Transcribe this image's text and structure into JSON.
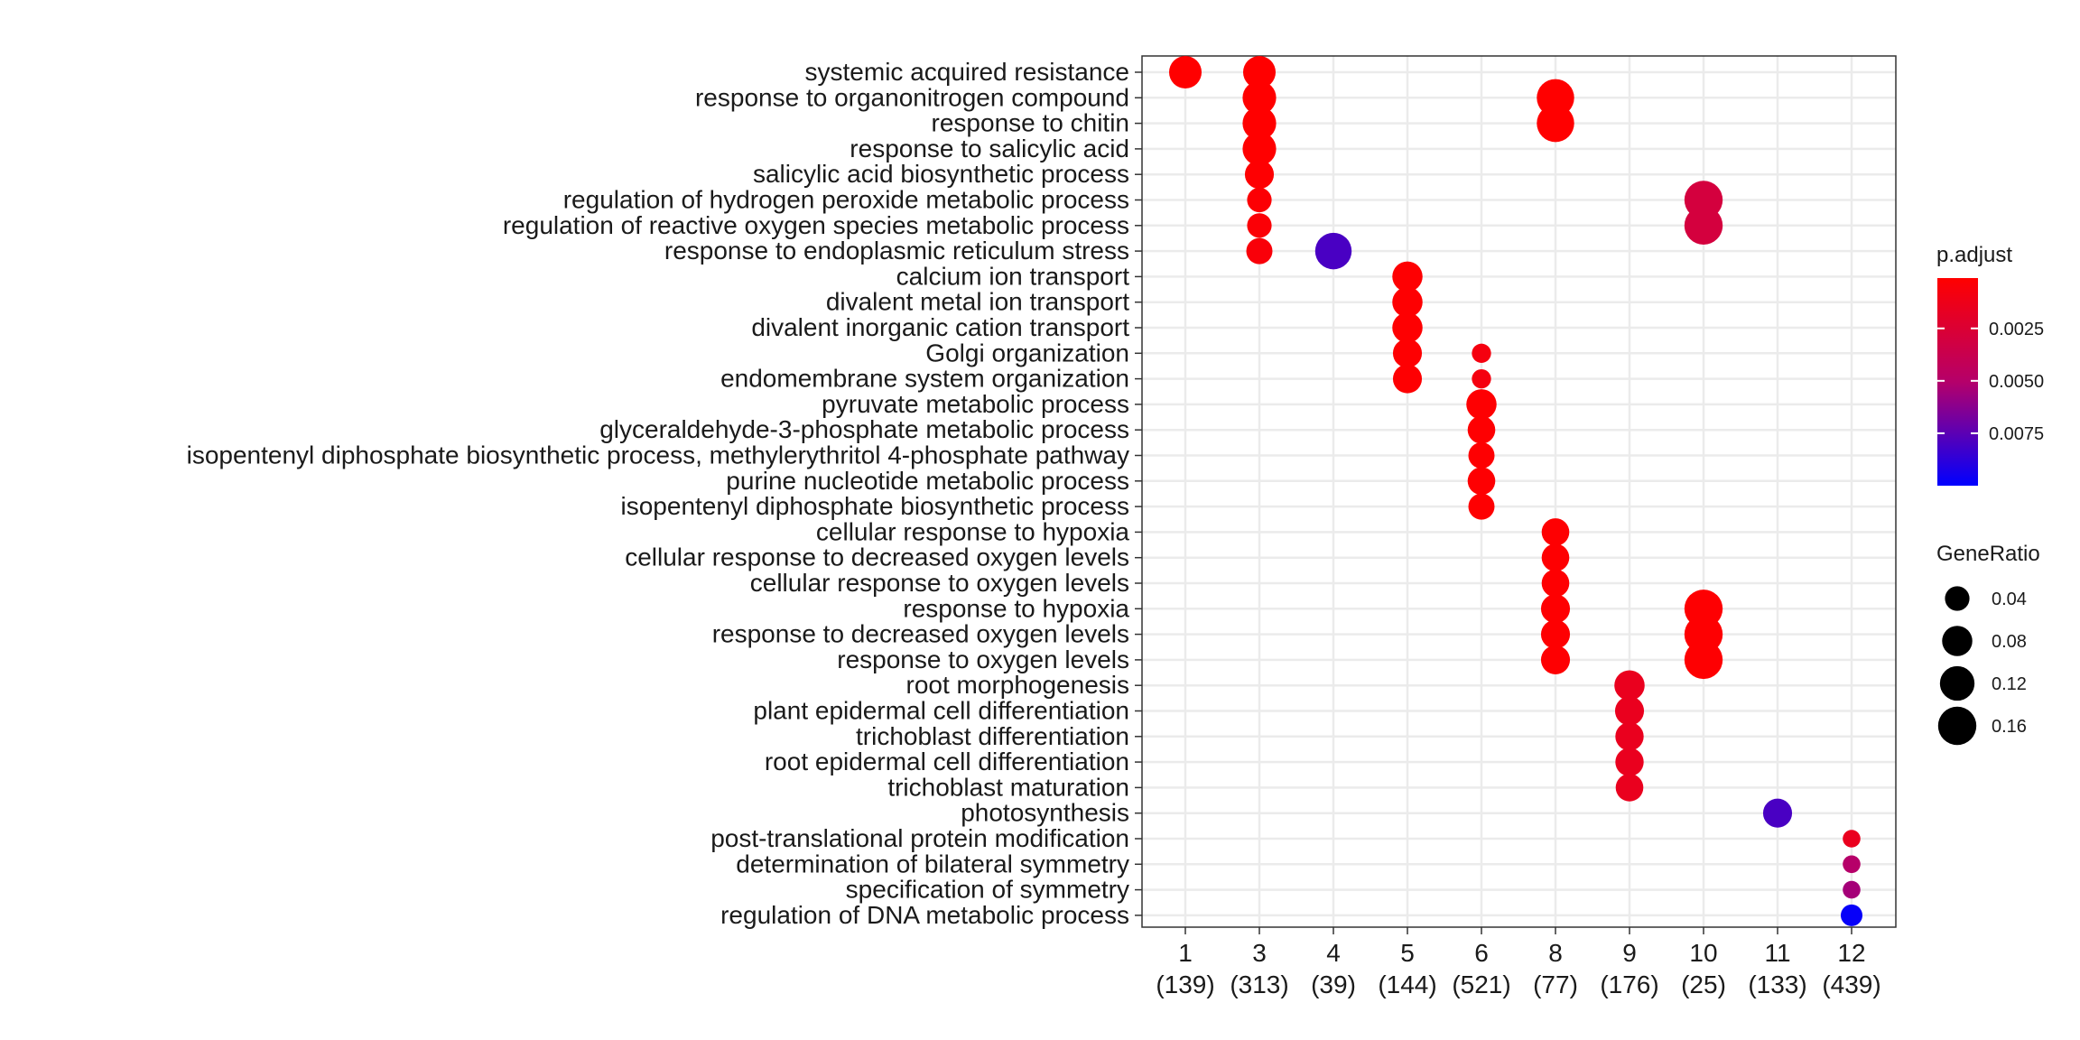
{
  "chart_data": {
    "type": "scatter",
    "categories_x": [
      {
        "cluster": "1",
        "count": "(139)"
      },
      {
        "cluster": "3",
        "count": "(313)"
      },
      {
        "cluster": "4",
        "count": "(39)"
      },
      {
        "cluster": "5",
        "count": "(144)"
      },
      {
        "cluster": "6",
        "count": "(521)"
      },
      {
        "cluster": "8",
        "count": "(77)"
      },
      {
        "cluster": "9",
        "count": "(176)"
      },
      {
        "cluster": "10",
        "count": "(25)"
      },
      {
        "cluster": "11",
        "count": "(133)"
      },
      {
        "cluster": "12",
        "count": "(439)"
      }
    ],
    "categories_y": [
      "systemic acquired resistance",
      "response to organonitrogen compound",
      "response to chitin",
      "response to salicylic acid",
      "salicylic acid biosynthetic process",
      "regulation of hydrogen peroxide metabolic process",
      "regulation of reactive oxygen species metabolic process",
      "response to endoplasmic reticulum stress",
      "calcium ion transport",
      "divalent metal ion transport",
      "divalent inorganic cation transport",
      "Golgi organization",
      "endomembrane system organization",
      "pyruvate metabolic process",
      "glyceraldehyde-3-phosphate metabolic process",
      "isopentenyl diphosphate biosynthetic process, methylerythritol 4-phosphate pathway",
      "purine nucleotide metabolic process",
      "isopentenyl diphosphate biosynthetic process",
      "cellular response to hypoxia",
      "cellular response to decreased oxygen levels",
      "cellular response to oxygen levels",
      "response to hypoxia",
      "response to decreased oxygen levels",
      "response to oxygen levels",
      "root morphogenesis",
      "plant epidermal cell differentiation",
      "trichoblast differentiation",
      "root epidermal cell differentiation",
      "trichoblast maturation",
      "photosynthesis",
      "post-translational protein modification",
      "determination of bilateral symmetry",
      "specification of symmetry",
      "regulation of DNA metabolic process"
    ],
    "points": [
      {
        "x": "1",
        "y": "systemic acquired resistance",
        "gene_ratio": 0.1,
        "p_adjust": 0.0001
      },
      {
        "x": "3",
        "y": "systemic acquired resistance",
        "gene_ratio": 0.1,
        "p_adjust": 0.0001
      },
      {
        "x": "3",
        "y": "response to organonitrogen compound",
        "gene_ratio": 0.11,
        "p_adjust": 0.0001
      },
      {
        "x": "3",
        "y": "response to chitin",
        "gene_ratio": 0.11,
        "p_adjust": 0.0001
      },
      {
        "x": "3",
        "y": "response to salicylic acid",
        "gene_ratio": 0.11,
        "p_adjust": 0.0001
      },
      {
        "x": "3",
        "y": "salicylic acid biosynthetic process",
        "gene_ratio": 0.07,
        "p_adjust": 0.0002
      },
      {
        "x": "3",
        "y": "regulation of hydrogen peroxide metabolic process",
        "gene_ratio": 0.04,
        "p_adjust": 0.0003
      },
      {
        "x": "3",
        "y": "regulation of reactive oxygen species metabolic process",
        "gene_ratio": 0.04,
        "p_adjust": 0.0004
      },
      {
        "x": "3",
        "y": "response to endoplasmic reticulum stress",
        "gene_ratio": 0.05,
        "p_adjust": 0.0005
      },
      {
        "x": "4",
        "y": "response to endoplasmic reticulum stress",
        "gene_ratio": 0.14,
        "p_adjust": 0.008
      },
      {
        "x": "5",
        "y": "calcium ion transport",
        "gene_ratio": 0.08,
        "p_adjust": 0.0002
      },
      {
        "x": "5",
        "y": "divalent metal ion transport",
        "gene_ratio": 0.08,
        "p_adjust": 0.0002
      },
      {
        "x": "5",
        "y": "divalent inorganic cation transport",
        "gene_ratio": 0.08,
        "p_adjust": 0.0002
      },
      {
        "x": "5",
        "y": "Golgi organization",
        "gene_ratio": 0.07,
        "p_adjust": 0.0002
      },
      {
        "x": "5",
        "y": "endomembrane system organization",
        "gene_ratio": 0.07,
        "p_adjust": 0.0002
      },
      {
        "x": "6",
        "y": "Golgi organization",
        "gene_ratio": 0.015,
        "p_adjust": 0.0008
      },
      {
        "x": "6",
        "y": "endomembrane system organization",
        "gene_ratio": 0.015,
        "p_adjust": 0.0008
      },
      {
        "x": "6",
        "y": "pyruvate metabolic process",
        "gene_ratio": 0.08,
        "p_adjust": 0.0002
      },
      {
        "x": "6",
        "y": "glyceraldehyde-3-phosphate metabolic process",
        "gene_ratio": 0.06,
        "p_adjust": 0.0002
      },
      {
        "x": "6",
        "y": "isopentenyl diphosphate biosynthetic process, methylerythritol 4-phosphate pathway",
        "gene_ratio": 0.05,
        "p_adjust": 0.0002
      },
      {
        "x": "6",
        "y": "purine nucleotide metabolic process",
        "gene_ratio": 0.06,
        "p_adjust": 0.0002
      },
      {
        "x": "6",
        "y": "isopentenyl diphosphate biosynthetic process",
        "gene_ratio": 0.05,
        "p_adjust": 0.0002
      },
      {
        "x": "8",
        "y": "response to organonitrogen compound",
        "gene_ratio": 0.15,
        "p_adjust": 0.0001
      },
      {
        "x": "8",
        "y": "response to chitin",
        "gene_ratio": 0.15,
        "p_adjust": 0.0001
      },
      {
        "x": "8",
        "y": "cellular response to hypoxia",
        "gene_ratio": 0.06,
        "p_adjust": 0.0002
      },
      {
        "x": "8",
        "y": "cellular response to decreased oxygen levels",
        "gene_ratio": 0.06,
        "p_adjust": 0.0002
      },
      {
        "x": "8",
        "y": "cellular response to oxygen levels",
        "gene_ratio": 0.06,
        "p_adjust": 0.0002
      },
      {
        "x": "8",
        "y": "response to hypoxia",
        "gene_ratio": 0.07,
        "p_adjust": 0.0002
      },
      {
        "x": "8",
        "y": "response to decreased oxygen levels",
        "gene_ratio": 0.07,
        "p_adjust": 0.0002
      },
      {
        "x": "8",
        "y": "response to oxygen levels",
        "gene_ratio": 0.07,
        "p_adjust": 0.0002
      },
      {
        "x": "9",
        "y": "root morphogenesis",
        "gene_ratio": 0.08,
        "p_adjust": 0.0015
      },
      {
        "x": "9",
        "y": "plant epidermal cell differentiation",
        "gene_ratio": 0.07,
        "p_adjust": 0.0015
      },
      {
        "x": "9",
        "y": "trichoblast differentiation",
        "gene_ratio": 0.065,
        "p_adjust": 0.0015
      },
      {
        "x": "9",
        "y": "root epidermal cell differentiation",
        "gene_ratio": 0.065,
        "p_adjust": 0.0015
      },
      {
        "x": "9",
        "y": "trichoblast maturation",
        "gene_ratio": 0.06,
        "p_adjust": 0.0015
      },
      {
        "x": "10",
        "y": "regulation of hydrogen peroxide metabolic process",
        "gene_ratio": 0.16,
        "p_adjust": 0.003
      },
      {
        "x": "10",
        "y": "regulation of reactive oxygen species metabolic process",
        "gene_ratio": 0.16,
        "p_adjust": 0.003
      },
      {
        "x": "10",
        "y": "response to hypoxia",
        "gene_ratio": 0.16,
        "p_adjust": 0.0002
      },
      {
        "x": "10",
        "y": "response to decreased oxygen levels",
        "gene_ratio": 0.16,
        "p_adjust": 0.0002
      },
      {
        "x": "10",
        "y": "response to oxygen levels",
        "gene_ratio": 0.16,
        "p_adjust": 0.0002
      },
      {
        "x": "11",
        "y": "photosynthesis",
        "gene_ratio": 0.07,
        "p_adjust": 0.008
      },
      {
        "x": "12",
        "y": "post-translational protein modification",
        "gene_ratio": 0.01,
        "p_adjust": 0.0015
      },
      {
        "x": "12",
        "y": "determination of bilateral symmetry",
        "gene_ratio": 0.01,
        "p_adjust": 0.005
      },
      {
        "x": "12",
        "y": "specification of symmetry",
        "gene_ratio": 0.01,
        "p_adjust": 0.0055
      },
      {
        "x": "12",
        "y": "regulation of DNA metabolic process",
        "gene_ratio": 0.025,
        "p_adjust": 0.0098
      }
    ],
    "color_legend": {
      "title": "p.adjust",
      "ticks": [
        0.0025,
        0.005,
        0.0075
      ],
      "tick_labels": [
        "0.0025",
        "0.0050",
        "0.0075"
      ],
      "range": [
        0.0001,
        0.01
      ],
      "low_color": "#ff0000",
      "high_color": "#0000ff"
    },
    "size_legend": {
      "title": "GeneRatio",
      "values": [
        0.04,
        0.08,
        0.12,
        0.16
      ],
      "labels": [
        "0.04",
        "0.08",
        "0.12",
        "0.16"
      ]
    },
    "grid": true,
    "legend_position": "right"
  }
}
